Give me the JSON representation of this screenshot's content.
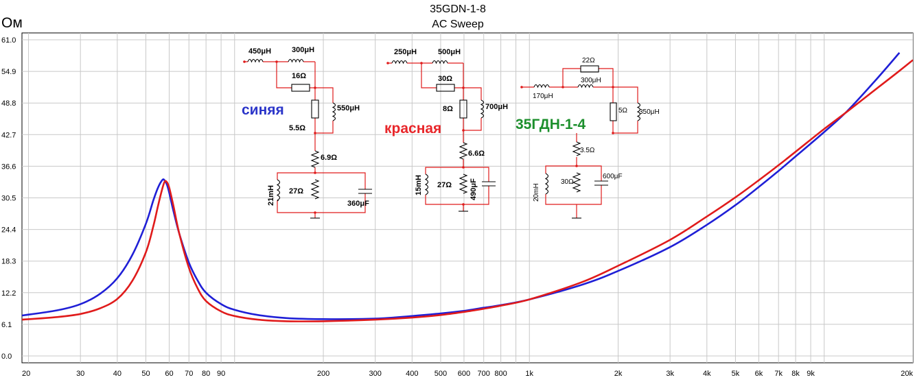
{
  "chart_data": {
    "type": "line",
    "title": "35GDN-1-8",
    "subtitle": "AC Sweep",
    "ylabel": "Ом",
    "xscale": "log",
    "xlim": [
      19,
      20000
    ],
    "ylim": [
      0,
      61
    ],
    "grid": true,
    "y_ticks": [
      0.0,
      6.1,
      12.2,
      18.3,
      24.4,
      30.5,
      36.6,
      42.7,
      48.8,
      54.9,
      61.0
    ],
    "y_tick_labels": [
      "0.0",
      "6.1",
      "12.2",
      "18.3",
      "24.4",
      "30.5",
      "36.6",
      "42.7",
      "48.8",
      "54.9",
      "61.0"
    ],
    "x_ticks": [
      20,
      30,
      40,
      50,
      60,
      70,
      80,
      90,
      200,
      300,
      400,
      500,
      600,
      700,
      800,
      1000,
      2000,
      3000,
      4000,
      5000,
      6000,
      7000,
      8000,
      9000,
      20000
    ],
    "x_tick_labels": [
      "20",
      "30",
      "40",
      "50",
      "60",
      "70",
      "80",
      "90",
      "200",
      "300",
      "400",
      "500",
      "600",
      "700",
      "800",
      "1k",
      "2k",
      "3k",
      "4k",
      "5k",
      "6k",
      "7k",
      "8k",
      "9k",
      "20k"
    ],
    "series": [
      {
        "color": "#1f1fd6",
        "x": [
          19,
          25,
          30,
          35,
          40,
          45,
          50,
          53,
          55,
          57,
          58,
          59,
          60,
          62,
          65,
          70,
          75,
          80,
          90,
          100,
          120,
          150,
          200,
          300,
          400,
          500,
          600,
          700,
          800,
          1000,
          1500,
          2000,
          3000,
          4000,
          5000,
          6000,
          7000,
          8000,
          10000,
          12000,
          15000,
          18000
        ],
        "values": [
          7.8,
          8.8,
          10.0,
          12.0,
          15.0,
          19.5,
          25.5,
          30.0,
          32.5,
          34.0,
          33.8,
          33.0,
          31.5,
          28.0,
          23.5,
          18.0,
          14.5,
          12.2,
          10.0,
          8.9,
          7.9,
          7.3,
          7.1,
          7.2,
          7.7,
          8.2,
          8.7,
          9.3,
          9.8,
          10.9,
          13.7,
          16.4,
          21.0,
          25.3,
          29.1,
          32.6,
          35.7,
          38.5,
          43.2,
          47.3,
          53.3,
          58.5
        ]
      },
      {
        "color": "#e01b1b",
        "x": [
          19,
          25,
          30,
          35,
          40,
          45,
          50,
          53,
          55,
          57,
          58,
          59,
          60,
          62,
          65,
          70,
          75,
          80,
          90,
          100,
          120,
          150,
          200,
          300,
          400,
          500,
          600,
          700,
          800,
          1000,
          1500,
          2000,
          3000,
          4000,
          5000,
          6000,
          7000,
          8000,
          10000,
          12000,
          15000,
          18000,
          20000
        ],
        "values": [
          7.0,
          7.5,
          8.1,
          9.2,
          11.0,
          14.5,
          20.0,
          25.0,
          29.0,
          32.5,
          33.7,
          33.5,
          32.5,
          29.0,
          23.5,
          17.0,
          13.0,
          10.6,
          8.6,
          7.7,
          7.0,
          6.7,
          6.7,
          7.0,
          7.4,
          7.9,
          8.5,
          9.1,
          9.7,
          10.9,
          14.2,
          17.4,
          22.4,
          26.9,
          30.6,
          33.9,
          36.8,
          39.4,
          43.8,
          47.2,
          51.5,
          55.0,
          57.1
        ]
      }
    ]
  },
  "annotations": {
    "blue_label": "синяя",
    "red_label": "красная",
    "green_label": "35ГДН-1-4",
    "circuit_blue": [
      "450μH",
      "300μH",
      "16Ω",
      "550μH",
      "5.5Ω",
      "6.9Ω",
      "21mH",
      "27Ω",
      "360μF"
    ],
    "circuit_red": [
      "250μH",
      "500μH",
      "30Ω",
      "8Ω",
      "700μH",
      "6.6Ω",
      "15mH",
      "27Ω",
      "490μF"
    ],
    "circuit_green": [
      "22Ω",
      "170μH",
      "300μH",
      "5Ω",
      "350μH",
      "3.5Ω",
      "20mH",
      "30Ω",
      "600μF"
    ]
  },
  "colors": {
    "grid": "#c8c8c8",
    "frame": "#000000",
    "wire": "#e01b1b",
    "blue_label": "#2b35c9",
    "red_label": "#e8262a",
    "green_label": "#1c8f2c"
  }
}
